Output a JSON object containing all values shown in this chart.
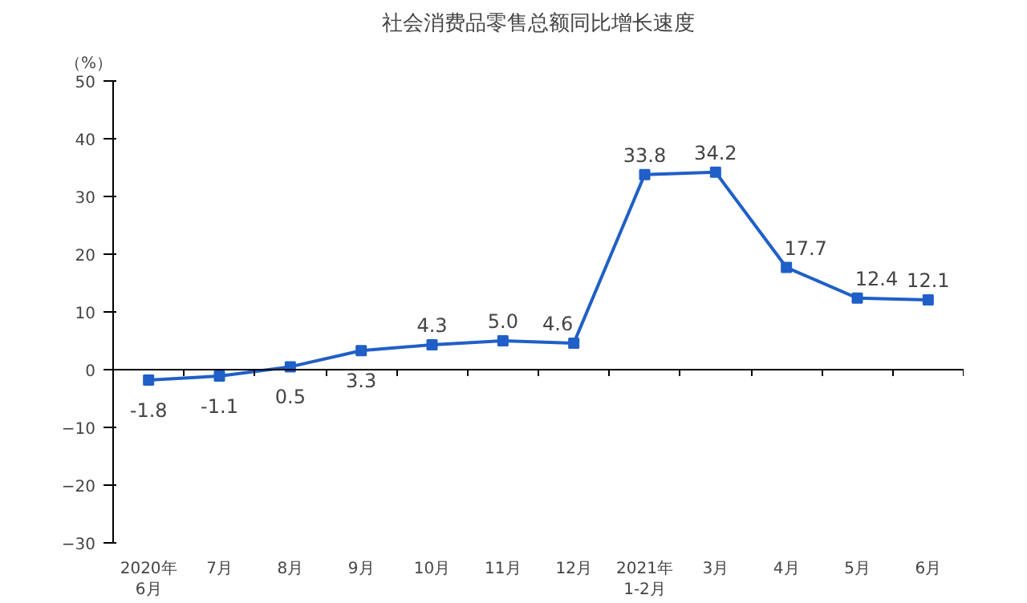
{
  "chart_data": {
    "type": "line",
    "title": "社会消费品零售总额同比增长速度",
    "ylabel": "（%）",
    "categories": [
      "2020年\n6月",
      "7月",
      "8月",
      "9月",
      "10月",
      "11月",
      "12月",
      "2021年\n1-2月",
      "3月",
      "4月",
      "5月",
      "6月"
    ],
    "series": [
      {
        "color": "#1f5fc7",
        "values": [
          -1.8,
          -1.1,
          0.5,
          3.3,
          4.3,
          5.0,
          4.6,
          33.8,
          34.2,
          17.7,
          12.4,
          12.1
        ],
        "value_labels": [
          "-1.8",
          "-1.1",
          "0.5",
          "3.3",
          "4.3",
          "5.0",
          "4.6",
          "33.8",
          "34.2",
          "17.7",
          "12.4",
          "12.1"
        ]
      }
    ],
    "ylim": [
      -30,
      50
    ],
    "yticks": [
      -30,
      -20,
      -10,
      0,
      10,
      20,
      30,
      40,
      50
    ],
    "marker": "square",
    "line_style": "solid"
  }
}
